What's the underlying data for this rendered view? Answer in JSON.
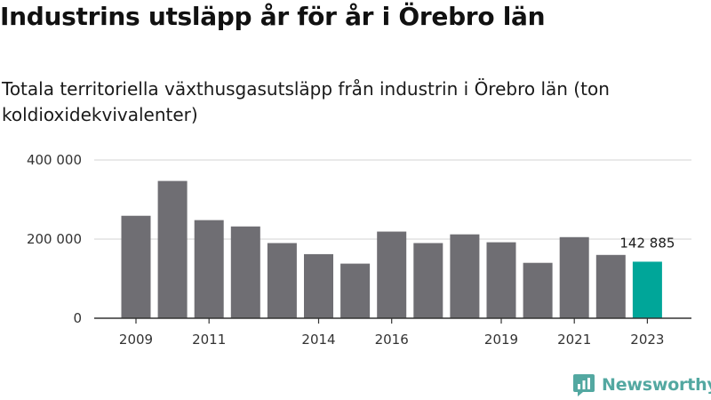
{
  "chart_data": {
    "type": "bar",
    "title": "Industrins utsläpp år för år i Örebro län",
    "subtitle": "Totala territoriella växthusgasutsläpp från industrin i Örebro län (ton koldioxidekvivalenter)",
    "xlabel": "",
    "ylabel": "",
    "categories": [
      "2009",
      "2010",
      "2011",
      "2012",
      "2013",
      "2014",
      "2015",
      "2016",
      "2017",
      "2018",
      "2019",
      "2020",
      "2021",
      "2022",
      "2023"
    ],
    "x_tick_labels": [
      "2009",
      "2011",
      "2014",
      "2016",
      "2019",
      "2021",
      "2023"
    ],
    "values": [
      259000,
      347000,
      248000,
      232000,
      190000,
      162000,
      138000,
      219000,
      190000,
      212000,
      192000,
      140000,
      205000,
      160000,
      142885
    ],
    "ylim": [
      0,
      400000
    ],
    "y_ticks": [
      0,
      200000,
      400000
    ],
    "y_tick_labels": [
      "0",
      "200 000",
      "400 000"
    ],
    "highlight_label": "142 885",
    "grid": true,
    "colors": {
      "bar": "#6f6e73",
      "highlight": "#00a699",
      "grid": "#dcdcdc",
      "axis": "#333333"
    }
  },
  "brand": {
    "name": "Newsworthy",
    "icon": "newsworthy-logo-icon",
    "color": "#53a8a1"
  }
}
